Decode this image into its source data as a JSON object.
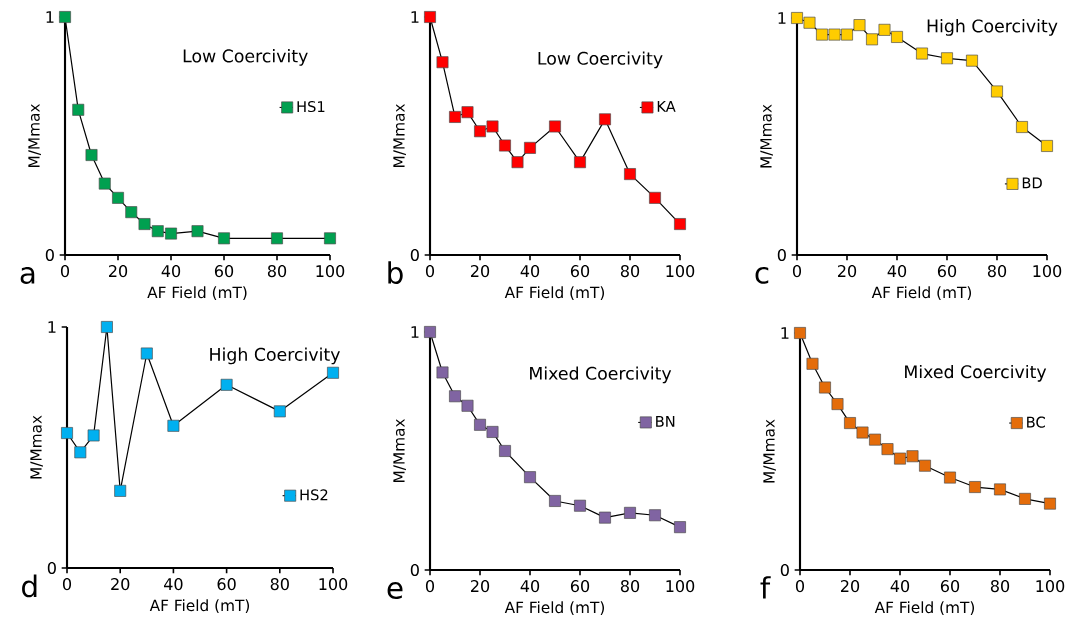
{
  "chart_data": [
    {
      "type": "line",
      "xlabel": "AF Field (mT)",
      "ylabel": "M/Mmax",
      "annotations": [
        "Low Coercivity",
        "a"
      ],
      "xlim": [
        0,
        100
      ],
      "ylim": [
        0,
        1
      ],
      "xticks": [
        0,
        20,
        40,
        60,
        80,
        100
      ],
      "yticks": [
        0,
        1
      ],
      "marker": "square",
      "legend": "right",
      "series": [
        {
          "name": "HS1",
          "color": "#00a050",
          "x": [
            0,
            5,
            10,
            15,
            20,
            25,
            30,
            35,
            40,
            50,
            60,
            80,
            100
          ],
          "values": [
            1,
            0.61,
            0.42,
            0.3,
            0.24,
            0.18,
            0.13,
            0.1,
            0.09,
            0.1,
            0.07,
            0.07,
            0.07
          ]
        }
      ]
    },
    {
      "type": "line",
      "xlabel": "AF Field (mT)",
      "ylabel": "M/Mmax",
      "annotations": [
        "Low Coercivity",
        "b"
      ],
      "xlim": [
        0,
        100
      ],
      "ylim": [
        0,
        1
      ],
      "xticks": [
        0,
        20,
        40,
        60,
        80,
        100
      ],
      "yticks": [
        0,
        1
      ],
      "marker": "square",
      "legend": "right",
      "series": [
        {
          "name": "KA",
          "color": "#ff0000",
          "x": [
            0,
            5,
            10,
            15,
            20,
            25,
            30,
            35,
            40,
            50,
            60,
            70,
            80,
            90,
            100
          ],
          "values": [
            1,
            0.81,
            0.58,
            0.6,
            0.52,
            0.54,
            0.46,
            0.39,
            0.45,
            0.54,
            0.39,
            0.57,
            0.34,
            0.24,
            0.13
          ]
        }
      ]
    },
    {
      "type": "line",
      "xlabel": "AF Field (mT)",
      "ylabel": "M/Mmax",
      "annotations": [
        "High Coercivity",
        "c"
      ],
      "xlim": [
        0,
        100
      ],
      "ylim": [
        0,
        1
      ],
      "xticks": [
        0,
        20,
        40,
        60,
        80,
        100
      ],
      "yticks": [
        0,
        1
      ],
      "marker": "square",
      "legend": "bottom right",
      "series": [
        {
          "name": "BD",
          "color": "#ffcc00",
          "x": [
            0,
            5,
            10,
            15,
            20,
            25,
            30,
            35,
            40,
            50,
            60,
            70,
            80,
            90,
            100
          ],
          "values": [
            1,
            0.98,
            0.93,
            0.93,
            0.93,
            0.97,
            0.91,
            0.95,
            0.92,
            0.85,
            0.83,
            0.82,
            0.69,
            0.54,
            0.46
          ]
        }
      ]
    },
    {
      "type": "line",
      "xlabel": "AF Field (mT)",
      "ylabel": "M/Mmax",
      "annotations": [
        "High Coercivity",
        "d"
      ],
      "xlim": [
        0,
        100
      ],
      "ylim": [
        0,
        1
      ],
      "xticks": [
        0,
        20,
        40,
        60,
        80,
        100
      ],
      "yticks": [
        0,
        1
      ],
      "marker": "square",
      "legend": "bottom right",
      "series": [
        {
          "name": "HS2",
          "color": "#00b0f0",
          "x": [
            0,
            5,
            10,
            15,
            20,
            30,
            40,
            60,
            80,
            100
          ],
          "values": [
            0.56,
            0.48,
            0.55,
            1,
            0.32,
            0.89,
            0.59,
            0.76,
            0.65,
            0.81
          ]
        }
      ]
    },
    {
      "type": "line",
      "xlabel": "AF Field (mT)",
      "ylabel": "M/Mmax",
      "annotations": [
        "Mixed Coercivity",
        "e"
      ],
      "xlim": [
        0,
        100
      ],
      "ylim": [
        0,
        1
      ],
      "xticks": [
        0,
        20,
        40,
        60,
        80,
        100
      ],
      "yticks": [
        0,
        1
      ],
      "marker": "square",
      "legend": "right",
      "series": [
        {
          "name": "BN",
          "color": "#8064a2",
          "x": [
            0,
            5,
            10,
            15,
            20,
            25,
            30,
            40,
            50,
            60,
            70,
            80,
            90,
            100
          ],
          "values": [
            1,
            0.83,
            0.73,
            0.69,
            0.61,
            0.58,
            0.5,
            0.39,
            0.29,
            0.27,
            0.22,
            0.24,
            0.23,
            0.18
          ]
        }
      ]
    },
    {
      "type": "line",
      "xlabel": "AF Field (mT)",
      "ylabel": "M/Mmax",
      "annotations": [
        "Mixed Coercivity",
        "f"
      ],
      "xlim": [
        0,
        100
      ],
      "ylim": [
        0,
        1
      ],
      "xticks": [
        0,
        20,
        40,
        60,
        80,
        100
      ],
      "yticks": [
        0,
        1
      ],
      "marker": "square",
      "legend": "right",
      "series": [
        {
          "name": "BC",
          "color": "#e46c0a",
          "x": [
            0,
            5,
            10,
            15,
            20,
            25,
            30,
            35,
            40,
            45,
            50,
            60,
            70,
            80,
            90,
            100
          ],
          "values": [
            1,
            0.87,
            0.77,
            0.7,
            0.62,
            0.58,
            0.55,
            0.51,
            0.47,
            0.48,
            0.44,
            0.39,
            0.35,
            0.34,
            0.3,
            0.28
          ]
        }
      ]
    }
  ]
}
